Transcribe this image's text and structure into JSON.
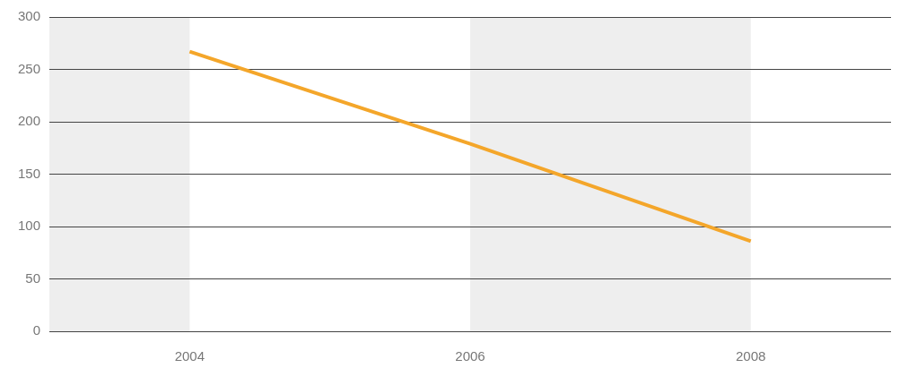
{
  "chart_data": {
    "type": "line",
    "categories": [
      "2004",
      "2006",
      "2008"
    ],
    "values": [
      267,
      179,
      86
    ],
    "color": "#f4a62a",
    "ylim": [
      0,
      300
    ],
    "yticks": [
      0,
      50,
      100,
      150,
      200,
      250,
      300
    ],
    "grid": true
  }
}
